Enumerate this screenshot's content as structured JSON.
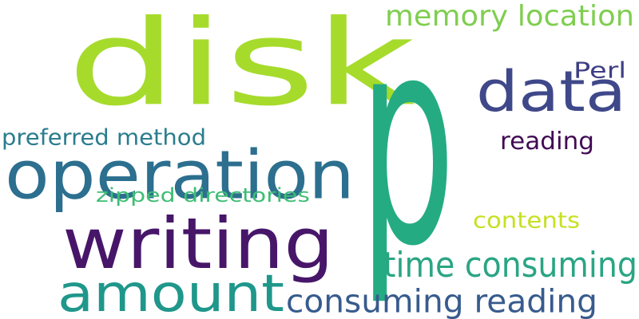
{
  "words": [
    {
      "text": "disk",
      "color": "#a6db2c"
    },
    {
      "text": "p",
      "color": "#25ab82"
    },
    {
      "text": "operation",
      "color": "#2c6f8f"
    },
    {
      "text": "data",
      "color": "#3f4889"
    },
    {
      "text": "writing",
      "color": "#471669"
    },
    {
      "text": "amount",
      "color": "#1f978b"
    },
    {
      "text": "consuming reading",
      "color": "#375b8d"
    },
    {
      "text": "time consuming",
      "color": "#2aa583"
    },
    {
      "text": "memory location",
      "color": "#7fce50"
    },
    {
      "text": "preferred method",
      "color": "#2b7d8e"
    },
    {
      "text": "zipped directories",
      "color": "#3ebd74"
    },
    {
      "text": "reading",
      "color": "#420a54"
    },
    {
      "text": "Perl",
      "color": "#3e3e84"
    },
    {
      "text": "contents",
      "color": "#c7e021"
    }
  ]
}
